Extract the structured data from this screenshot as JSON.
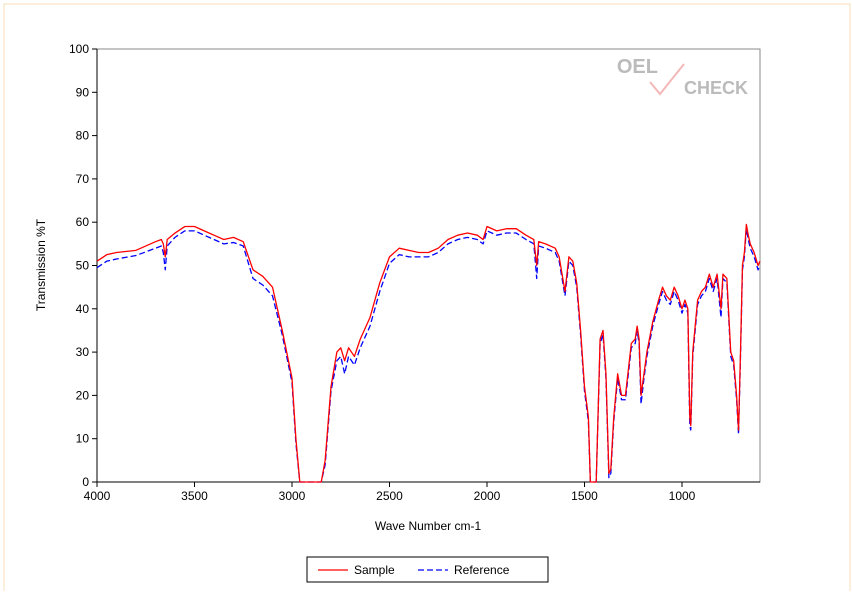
{
  "chart_data": {
    "type": "line",
    "logo": {
      "first": "OEL",
      "second": "CHECK"
    },
    "y_label": "Transmission %T",
    "x_label": "Wave Number cm-1",
    "xlim": [
      4000,
      600
    ],
    "xticks": [
      4000,
      3500,
      3000,
      2500,
      2000,
      1500,
      1000
    ],
    "ylim": [
      0,
      100
    ],
    "yticks": [
      0,
      10,
      20,
      30,
      40,
      50,
      60,
      70,
      80,
      90,
      100
    ],
    "grid": false,
    "legend": "bottom",
    "x": [
      4000,
      3950,
      3900,
      3800,
      3700,
      3670,
      3660,
      3650,
      3640,
      3600,
      3550,
      3500,
      3450,
      3400,
      3350,
      3300,
      3250,
      3200,
      3150,
      3100,
      3050,
      3000,
      2980,
      2960,
      2900,
      2850,
      2830,
      2800,
      2770,
      2750,
      2730,
      2710,
      2680,
      2650,
      2600,
      2550,
      2500,
      2450,
      2400,
      2350,
      2300,
      2250,
      2200,
      2150,
      2100,
      2050,
      2020,
      2000,
      1950,
      1900,
      1850,
      1800,
      1760,
      1745,
      1735,
      1700,
      1650,
      1630,
      1600,
      1580,
      1560,
      1540,
      1520,
      1500,
      1480,
      1470,
      1460,
      1440,
      1420,
      1405,
      1390,
      1375,
      1365,
      1350,
      1330,
      1310,
      1290,
      1260,
      1240,
      1230,
      1220,
      1210,
      1195,
      1180,
      1150,
      1120,
      1100,
      1080,
      1060,
      1040,
      1020,
      1000,
      985,
      970,
      960,
      955,
      945,
      920,
      900,
      880,
      860,
      840,
      820,
      800,
      790,
      770,
      750,
      735,
      720,
      710,
      700,
      690,
      680,
      670,
      660,
      650,
      630,
      610,
      600
    ],
    "series": [
      {
        "name": "Sample",
        "color": "#ff0000",
        "dash": false,
        "values": [
          51,
          52.5,
          53,
          53.5,
          55.5,
          56,
          55,
          52,
          56,
          57.5,
          59,
          59,
          58,
          57,
          56,
          56.5,
          55.5,
          49,
          47.5,
          45,
          35,
          24,
          10,
          0,
          0,
          0,
          5,
          22,
          30,
          31,
          28,
          31,
          29,
          33,
          38,
          46,
          52,
          54,
          53.5,
          53,
          53,
          54,
          56,
          57,
          57.5,
          57,
          56,
          59,
          58,
          58.5,
          58.5,
          57,
          56,
          50,
          55.5,
          55,
          54,
          52,
          44,
          52,
          51,
          46,
          35,
          22,
          15,
          0,
          0,
          0,
          33,
          35,
          25,
          2,
          3,
          15,
          25,
          20,
          20,
          32,
          33,
          36,
          33,
          20,
          25,
          30,
          37,
          42,
          45,
          43,
          42,
          45,
          43,
          40,
          42,
          40,
          15,
          13,
          30,
          42,
          44,
          45,
          48,
          45,
          48,
          40,
          48,
          47,
          30,
          28,
          20,
          12,
          30,
          50,
          53,
          59.5,
          57,
          55,
          53,
          50,
          51
        ]
      },
      {
        "name": "Reference",
        "color": "#0000ff",
        "dash": true,
        "values": [
          49.5,
          51,
          51.5,
          52.3,
          54,
          54.5,
          53,
          49,
          54.5,
          56.5,
          58,
          58,
          57,
          56,
          55,
          55.3,
          54.5,
          47,
          45.5,
          43,
          34,
          23,
          9,
          0,
          0,
          0,
          4,
          21,
          28,
          29,
          25,
          29,
          27,
          31,
          36,
          44,
          50.5,
          52.5,
          52,
          52,
          52,
          53,
          55,
          56,
          56.5,
          56,
          55,
          58,
          57,
          57.5,
          57.5,
          56,
          55,
          47,
          54.5,
          54,
          53,
          51,
          43,
          51,
          50,
          45,
          34,
          21,
          14,
          0,
          0,
          0,
          32,
          34,
          24,
          1,
          2,
          14,
          24,
          19,
          19,
          31,
          32,
          35,
          32,
          18,
          24,
          29,
          36,
          41,
          44,
          42,
          41,
          44,
          42,
          39,
          41,
          39,
          13,
          12,
          29,
          41,
          43,
          44,
          47,
          44,
          47,
          38,
          47,
          46,
          29,
          27,
          19,
          11,
          29,
          49,
          52,
          58.5,
          56,
          54,
          52,
          49,
          50
        ]
      }
    ]
  }
}
